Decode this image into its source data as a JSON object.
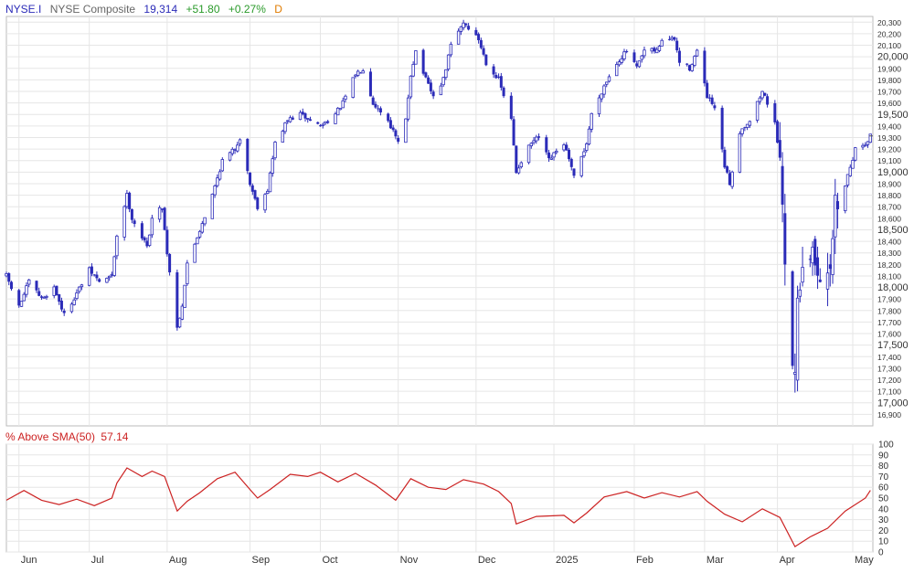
{
  "header": {
    "symbol": "NYSE.I",
    "name": "NYSE Composite",
    "last": "19,314",
    "change": "+51.80",
    "change_pct": "+0.27%",
    "period": "D"
  },
  "indicator": {
    "label": "% Above SMA(50)",
    "value": "57.14"
  },
  "colors": {
    "candle": "#2b2bb8",
    "indicator": "#cc2222",
    "grid": "#e6e6e6",
    "frame": "#bbbbbb",
    "symbol": "#2b2bb8",
    "last": "#2b2bb8",
    "change": "#2a9a2a",
    "period": "#e07b00"
  },
  "chart_data": [
    {
      "type": "candlestick",
      "title": "NYSE.I NYSE Composite",
      "ylim": [
        16800,
        20350
      ],
      "x_labels": [
        "Jun",
        "Jul",
        "Aug",
        "Sep",
        "Oct",
        "Nov",
        "Dec",
        "2025",
        "Feb",
        "Mar",
        "Apr",
        "May"
      ],
      "y_ticks": [
        16900,
        17000,
        17100,
        17200,
        17300,
        17400,
        17500,
        17600,
        17700,
        17800,
        17900,
        18000,
        18100,
        18200,
        18300,
        18400,
        18500,
        18600,
        18700,
        18800,
        18900,
        19000,
        19100,
        19200,
        19300,
        19400,
        19500,
        19600,
        19700,
        19800,
        19900,
        20000,
        20100,
        20200,
        20300
      ],
      "y_major_ticks": [
        17000,
        17500,
        18000,
        18500,
        19000,
        19500,
        20000
      ],
      "close_path": [
        [
          "2024-05-29",
          18100
        ],
        [
          "2024-06-03",
          17830
        ],
        [
          "2024-06-07",
          18050
        ],
        [
          "2024-06-12",
          17900
        ],
        [
          "2024-06-17",
          18000
        ],
        [
          "2024-06-21",
          17760
        ],
        [
          "2024-06-26",
          17950
        ],
        [
          "2024-07-01",
          18150
        ],
        [
          "2024-07-05",
          18050
        ],
        [
          "2024-07-10",
          18100
        ],
        [
          "2024-07-12",
          18450
        ],
        [
          "2024-07-16",
          18800
        ],
        [
          "2024-07-18",
          18600
        ],
        [
          "2024-07-24",
          18350
        ],
        [
          "2024-07-26",
          18600
        ],
        [
          "2024-07-30",
          18700
        ],
        [
          "2024-08-01",
          18300
        ],
        [
          "2024-08-05",
          17650
        ],
        [
          "2024-08-07",
          17850
        ],
        [
          "2024-08-09",
          18200
        ],
        [
          "2024-08-14",
          18500
        ],
        [
          "2024-08-19",
          18800
        ],
        [
          "2024-08-23",
          19100
        ],
        [
          "2024-08-28",
          19200
        ],
        [
          "2024-08-30",
          19300
        ],
        [
          "2024-09-03",
          18900
        ],
        [
          "2024-09-06",
          18700
        ],
        [
          "2024-09-10",
          18850
        ],
        [
          "2024-09-13",
          19250
        ],
        [
          "2024-09-18",
          19450
        ],
        [
          "2024-09-23",
          19500
        ],
        [
          "2024-09-27",
          19450
        ],
        [
          "2024-10-01",
          19400
        ],
        [
          "2024-10-07",
          19500
        ],
        [
          "2024-10-10",
          19600
        ],
        [
          "2024-10-15",
          19850
        ],
        [
          "2024-10-18",
          19900
        ],
        [
          "2024-10-22",
          19600
        ],
        [
          "2024-10-28",
          19450
        ],
        [
          "2024-11-01",
          19250
        ],
        [
          "2024-11-04",
          19450
        ],
        [
          "2024-11-06",
          19850
        ],
        [
          "2024-11-08",
          20050
        ],
        [
          "2024-11-12",
          19800
        ],
        [
          "2024-11-15",
          19650
        ],
        [
          "2024-11-19",
          19800
        ],
        [
          "2024-11-22",
          20100
        ],
        [
          "2024-11-27",
          20300
        ],
        [
          "2024-11-29",
          20250
        ],
        [
          "2024-12-03",
          20150
        ],
        [
          "2024-12-06",
          19950
        ],
        [
          "2024-12-11",
          19800
        ],
        [
          "2024-12-16",
          19450
        ],
        [
          "2024-12-18",
          19000
        ],
        [
          "2024-12-20",
          19100
        ],
        [
          "2024-12-24",
          19250
        ],
        [
          "2024-12-27",
          19300
        ],
        [
          "2024-12-31",
          19100
        ],
        [
          "2025-01-06",
          19250
        ],
        [
          "2025-01-10",
          18950
        ],
        [
          "2025-01-15",
          19250
        ],
        [
          "2025-01-17",
          19500
        ],
        [
          "2025-01-22",
          19750
        ],
        [
          "2025-01-27",
          19950
        ],
        [
          "2025-01-31",
          20050
        ],
        [
          "2025-02-04",
          19900
        ],
        [
          "2025-02-07",
          20050
        ],
        [
          "2025-02-12",
          20050
        ],
        [
          "2025-02-14",
          20150
        ],
        [
          "2025-02-19",
          20150
        ],
        [
          "2025-02-21",
          19950
        ],
        [
          "2025-02-25",
          19900
        ],
        [
          "2025-02-28",
          20050
        ],
        [
          "2025-03-04",
          19650
        ],
        [
          "2025-03-07",
          19550
        ],
        [
          "2025-03-11",
          19050
        ],
        [
          "2025-03-13",
          18900
        ],
        [
          "2025-03-17",
          19350
        ],
        [
          "2025-03-21",
          19450
        ],
        [
          "2025-03-26",
          19700
        ],
        [
          "2025-03-31",
          19450
        ],
        [
          "2025-04-03",
          18800
        ],
        [
          "2025-04-04",
          18200
        ],
        [
          "2025-04-07",
          17400
        ],
        [
          "2025-04-08",
          17200
        ],
        [
          "2025-04-09",
          18000
        ],
        [
          "2025-04-11",
          18100
        ],
        [
          "2025-04-15",
          18300
        ],
        [
          "2025-04-21",
          18000
        ],
        [
          "2025-04-24",
          18700
        ],
        [
          "2025-04-28",
          18900
        ],
        [
          "2025-05-02",
          19200
        ],
        [
          "2025-05-06",
          19250
        ],
        [
          "2025-05-08",
          19314
        ]
      ]
    },
    {
      "type": "line",
      "title": "% Above SMA(50)",
      "ylim": [
        0,
        100
      ],
      "y_ticks": [
        0,
        10,
        20,
        30,
        40,
        50,
        60,
        70,
        80,
        90,
        100
      ],
      "series": [
        {
          "name": "% Above SMA(50)",
          "points": [
            [
              "2024-05-29",
              48
            ],
            [
              "2024-06-05",
              57
            ],
            [
              "2024-06-12",
              48
            ],
            [
              "2024-06-19",
              44
            ],
            [
              "2024-06-26",
              49
            ],
            [
              "2024-07-03",
              43
            ],
            [
              "2024-07-10",
              50
            ],
            [
              "2024-07-12",
              64
            ],
            [
              "2024-07-16",
              78
            ],
            [
              "2024-07-22",
              70
            ],
            [
              "2024-07-26",
              75
            ],
            [
              "2024-07-31",
              70
            ],
            [
              "2024-08-05",
              38
            ],
            [
              "2024-08-09",
              47
            ],
            [
              "2024-08-14",
              55
            ],
            [
              "2024-08-21",
              68
            ],
            [
              "2024-08-28",
              74
            ],
            [
              "2024-09-03",
              58
            ],
            [
              "2024-09-06",
              50
            ],
            [
              "2024-09-11",
              58
            ],
            [
              "2024-09-19",
              72
            ],
            [
              "2024-09-26",
              70
            ],
            [
              "2024-10-01",
              74
            ],
            [
              "2024-10-08",
              65
            ],
            [
              "2024-10-15",
              73
            ],
            [
              "2024-10-23",
              62
            ],
            [
              "2024-10-31",
              48
            ],
            [
              "2024-11-06",
              68
            ],
            [
              "2024-11-13",
              60
            ],
            [
              "2024-11-20",
              58
            ],
            [
              "2024-11-27",
              67
            ],
            [
              "2024-12-05",
              63
            ],
            [
              "2024-12-11",
              56
            ],
            [
              "2024-12-16",
              45
            ],
            [
              "2024-12-18",
              26
            ],
            [
              "2024-12-26",
              33
            ],
            [
              "2025-01-06",
              34
            ],
            [
              "2025-01-10",
              27
            ],
            [
              "2025-01-15",
              36
            ],
            [
              "2025-01-22",
              51
            ],
            [
              "2025-01-31",
              56
            ],
            [
              "2025-02-07",
              50
            ],
            [
              "2025-02-14",
              55
            ],
            [
              "2025-02-21",
              51
            ],
            [
              "2025-02-28",
              56
            ],
            [
              "2025-03-04",
              47
            ],
            [
              "2025-03-11",
              35
            ],
            [
              "2025-03-18",
              28
            ],
            [
              "2025-03-26",
              40
            ],
            [
              "2025-04-02",
              32
            ],
            [
              "2025-04-08",
              5
            ],
            [
              "2025-04-14",
              14
            ],
            [
              "2025-04-21",
              22
            ],
            [
              "2025-04-28",
              38
            ],
            [
              "2025-05-06",
              50
            ],
            [
              "2025-05-08",
              57.14
            ]
          ]
        }
      ]
    }
  ]
}
